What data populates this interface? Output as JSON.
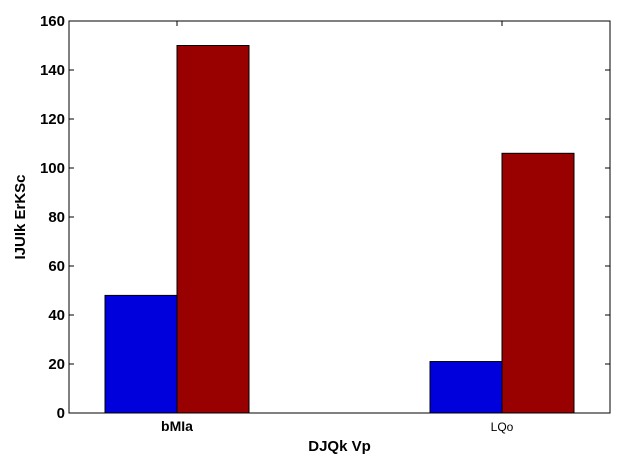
{
  "chart_data": {
    "type": "bar",
    "categories": [
      "bMIa",
      "LQo"
    ],
    "series": [
      {
        "values": [
          48,
          21
        ],
        "color": "#0000dd"
      },
      {
        "values": [
          150,
          106
        ],
        "color": "#990000"
      }
    ],
    "xlabel": "DJQk  Vp",
    "ylabel": "IJUIk ErKSc",
    "ylim": [
      0,
      160
    ],
    "yticks": [
      0,
      20,
      40,
      60,
      80,
      100,
      120,
      140,
      160
    ],
    "grid": false,
    "legend": "none"
  }
}
